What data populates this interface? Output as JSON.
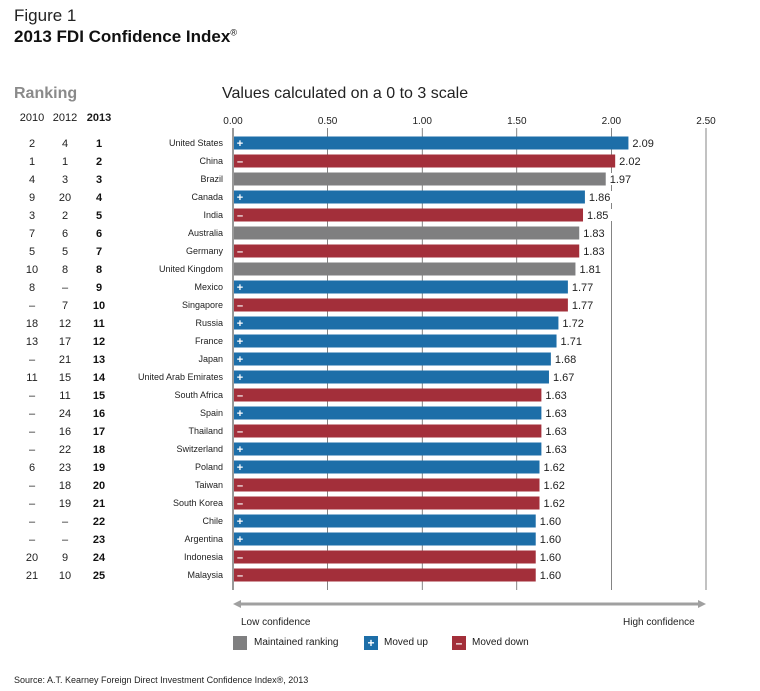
{
  "figure_label": "Figure 1",
  "figure_title": "2013 FDI Confidence Index",
  "figure_title_mark": "®",
  "ranking_header": "Ranking",
  "scale_label": "Values calculated on a 0 to 3 scale",
  "rank_columns": [
    "2010",
    "2012",
    "2013"
  ],
  "colors": {
    "maintained": "#7f7f80",
    "up": "#1d6ea8",
    "down": "#a32f3a",
    "axis": "#a0a0a0",
    "grid": "#333333"
  },
  "legend": [
    {
      "key": "maintained",
      "label": "Maintained ranking",
      "symbol": ""
    },
    {
      "key": "up",
      "label": "Moved up",
      "symbol": "+"
    },
    {
      "key": "down",
      "label": "Moved down",
      "symbol": "–"
    }
  ],
  "confidence": {
    "low": "Low confidence",
    "high": "High confidence"
  },
  "source": "Source: A.T. Kearney Foreign Direct Investment Confidence Index®, 2013",
  "chart_data": {
    "type": "bar",
    "orientation": "horizontal",
    "title": "2013 FDI Confidence Index",
    "xlabel": "Values calculated on a 0 to 3 scale",
    "xlim": [
      0,
      2.5
    ],
    "xticks": [
      "0.00",
      "0.50",
      "1.00",
      "1.50",
      "2.00",
      "2.50"
    ],
    "xtick_values": [
      0,
      0.5,
      1.0,
      1.5,
      2.0,
      2.5
    ],
    "rows": [
      {
        "r2010": "2",
        "r2012": "4",
        "r2013": "1",
        "country": "United States",
        "value": 2.09,
        "label": "2.09",
        "status": "up"
      },
      {
        "r2010": "1",
        "r2012": "1",
        "r2013": "2",
        "country": "China",
        "value": 2.02,
        "label": "2.02",
        "status": "down"
      },
      {
        "r2010": "4",
        "r2012": "3",
        "r2013": "3",
        "country": "Brazil",
        "value": 1.97,
        "label": "1.97",
        "status": "maintained"
      },
      {
        "r2010": "9",
        "r2012": "20",
        "r2013": "4",
        "country": "Canada",
        "value": 1.86,
        "label": "1.86",
        "status": "up"
      },
      {
        "r2010": "3",
        "r2012": "2",
        "r2013": "5",
        "country": "India",
        "value": 1.85,
        "label": "1.85",
        "status": "down"
      },
      {
        "r2010": "7",
        "r2012": "6",
        "r2013": "6",
        "country": "Australia",
        "value": 1.83,
        "label": "1.83",
        "status": "maintained"
      },
      {
        "r2010": "5",
        "r2012": "5",
        "r2013": "7",
        "country": "Germany",
        "value": 1.83,
        "label": "1.83",
        "status": "down"
      },
      {
        "r2010": "10",
        "r2012": "8",
        "r2013": "8",
        "country": "United Kingdom",
        "value": 1.81,
        "label": "1.81",
        "status": "maintained"
      },
      {
        "r2010": "8",
        "r2012": "–",
        "r2013": "9",
        "country": "Mexico",
        "value": 1.77,
        "label": "1.77",
        "status": "up"
      },
      {
        "r2010": "–",
        "r2012": "7",
        "r2013": "10",
        "country": "Singapore",
        "value": 1.77,
        "label": "1.77",
        "status": "down"
      },
      {
        "r2010": "18",
        "r2012": "12",
        "r2013": "11",
        "country": "Russia",
        "value": 1.72,
        "label": "1.72",
        "status": "up"
      },
      {
        "r2010": "13",
        "r2012": "17",
        "r2013": "12",
        "country": "France",
        "value": 1.71,
        "label": "1.71",
        "status": "up"
      },
      {
        "r2010": "–",
        "r2012": "21",
        "r2013": "13",
        "country": "Japan",
        "value": 1.68,
        "label": "1.68",
        "status": "up"
      },
      {
        "r2010": "11",
        "r2012": "15",
        "r2013": "14",
        "country": "United Arab Emirates",
        "value": 1.67,
        "label": "1.67",
        "status": "up"
      },
      {
        "r2010": "–",
        "r2012": "11",
        "r2013": "15",
        "country": "South Africa",
        "value": 1.63,
        "label": "1.63",
        "status": "down"
      },
      {
        "r2010": "–",
        "r2012": "24",
        "r2013": "16",
        "country": "Spain",
        "value": 1.63,
        "label": "1.63",
        "status": "up"
      },
      {
        "r2010": "–",
        "r2012": "16",
        "r2013": "17",
        "country": "Thailand",
        "value": 1.63,
        "label": "1.63",
        "status": "down"
      },
      {
        "r2010": "–",
        "r2012": "22",
        "r2013": "18",
        "country": "Switzerland",
        "value": 1.63,
        "label": "1.63",
        "status": "up"
      },
      {
        "r2010": "6",
        "r2012": "23",
        "r2013": "19",
        "country": "Poland",
        "value": 1.62,
        "label": "1.62",
        "status": "up"
      },
      {
        "r2010": "–",
        "r2012": "18",
        "r2013": "20",
        "country": "Taiwan",
        "value": 1.62,
        "label": "1.62",
        "status": "down"
      },
      {
        "r2010": "–",
        "r2012": "19",
        "r2013": "21",
        "country": "South Korea",
        "value": 1.62,
        "label": "1.62",
        "status": "down"
      },
      {
        "r2010": "–",
        "r2012": "–",
        "r2013": "22",
        "country": "Chile",
        "value": 1.6,
        "label": "1.60",
        "status": "up"
      },
      {
        "r2010": "–",
        "r2012": "–",
        "r2013": "23",
        "country": "Argentina",
        "value": 1.6,
        "label": "1.60",
        "status": "up"
      },
      {
        "r2010": "20",
        "r2012": "9",
        "r2013": "24",
        "country": "Indonesia",
        "value": 1.6,
        "label": "1.60",
        "status": "down"
      },
      {
        "r2010": "21",
        "r2012": "10",
        "r2013": "25",
        "country": "Malaysia",
        "value": 1.6,
        "label": "1.60",
        "status": "down"
      }
    ]
  }
}
